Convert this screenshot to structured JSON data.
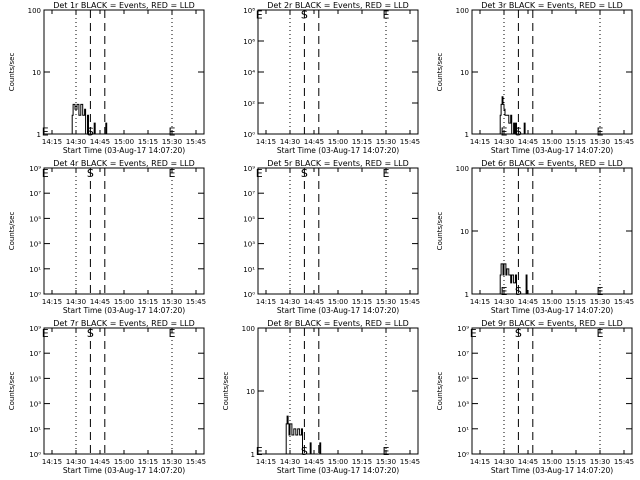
{
  "page": {
    "title_suffix": "BLACK = Events, RED = LLD",
    "x_axis_title": "Start Time (03-Aug-17 14:07:20)",
    "y_axis_title": "Counts/sec"
  },
  "chart_data": [
    {
      "type": "line",
      "title": "Det 1r BLACK = Events, RED = LLD",
      "xlabel": "Start Time (03-Aug-17 14:07:20)",
      "ylabel": "Counts/sec",
      "xlim_min": [
        14.1667,
        15.8333
      ],
      "xtick_labels": [
        "14:15",
        "14:30",
        "14:45",
        "15:00",
        "15:15",
        "15:30",
        "15:45"
      ],
      "ylim": [
        1,
        100
      ],
      "yscale": "log",
      "ytick_labels": [
        "1",
        "10",
        "100"
      ],
      "dotted_lines_min": [
        14.5,
        15.5
      ],
      "dashed_lines_min": [
        14.65,
        14.8
      ],
      "marker_labels": [
        {
          "text": "E",
          "x": 14.18,
          "y_frac": 0.03
        },
        {
          "text": "S",
          "x": 14.65,
          "y_frac": 0.03
        },
        {
          "text": "E",
          "x": 15.5,
          "y_frac": 0.03
        }
      ],
      "series": [
        {
          "color": "#000000",
          "points": [
            [
              14.45,
              1.0
            ],
            [
              14.46,
              2.0
            ],
            [
              14.47,
              3.0
            ],
            [
              14.49,
              2.5
            ],
            [
              14.51,
              3.0
            ],
            [
              14.53,
              2.0
            ],
            [
              14.55,
              3.0
            ],
            [
              14.57,
              2.0
            ],
            [
              14.59,
              2.5
            ],
            [
              14.6,
              1.0
            ],
            [
              14.62,
              2.0
            ],
            [
              14.63,
              1.0
            ],
            [
              14.68,
              1.0
            ],
            [
              14.69,
              1.5
            ],
            [
              14.7,
              1.0
            ],
            [
              14.8,
              1.0
            ],
            [
              14.81,
              1.5
            ],
            [
              14.82,
              1.0
            ]
          ]
        }
      ]
    },
    {
      "type": "line",
      "title": "Det 2r BLACK = Events, RED = LLD",
      "xlabel": "Start Time (03-Aug-17 14:07:20)",
      "ylabel": "",
      "xlim_min": [
        14.1667,
        15.8333
      ],
      "xtick_labels": [
        "14:15",
        "14:30",
        "14:45",
        "15:00",
        "15:15",
        "15:30",
        "15:45"
      ],
      "ylim": [
        1,
        100000000
      ],
      "yscale": "log",
      "ytick_labels": [
        "10⁰",
        "10²",
        "10⁴",
        "10⁶",
        "10⁸"
      ],
      "dotted_lines_min": [
        14.5,
        15.5
      ],
      "dashed_lines_min": [
        14.65,
        14.8
      ],
      "marker_labels": [
        {
          "text": "E",
          "x": 14.18,
          "y_frac": 0.97
        },
        {
          "text": "S",
          "x": 14.65,
          "y_frac": 0.97
        },
        {
          "text": "E",
          "x": 15.5,
          "y_frac": 0.97
        }
      ],
      "series": []
    },
    {
      "type": "line",
      "title": "Det 3r BLACK = Events, RED = LLD",
      "xlabel": "Start Time (03-Aug-17 14:07:20)",
      "ylabel": "Counts/sec",
      "xlim_min": [
        14.1667,
        15.8333
      ],
      "xtick_labels": [
        "14:15",
        "14:30",
        "14:45",
        "15:00",
        "15:15",
        "15:30",
        "15:45"
      ],
      "ylim": [
        1,
        100
      ],
      "yscale": "log",
      "ytick_labels": [
        "1",
        "10",
        "100"
      ],
      "dotted_lines_min": [
        14.5,
        15.5
      ],
      "dashed_lines_min": [
        14.65,
        14.8
      ],
      "marker_labels": [
        {
          "text": "E",
          "x": 14.5,
          "y_frac": 0.03
        },
        {
          "text": "S",
          "x": 14.65,
          "y_frac": 0.03
        },
        {
          "text": "E",
          "x": 15.5,
          "y_frac": 0.03
        }
      ],
      "series": [
        {
          "color": "#000000",
          "points": [
            [
              14.45,
              1.0
            ],
            [
              14.46,
              2.0
            ],
            [
              14.47,
              3.0
            ],
            [
              14.48,
              4.0
            ],
            [
              14.49,
              3.0
            ],
            [
              14.5,
              2.5
            ],
            [
              14.51,
              2.0
            ],
            [
              14.53,
              2.0
            ],
            [
              14.55,
              1.5
            ],
            [
              14.57,
              2.0
            ],
            [
              14.58,
              1.0
            ],
            [
              14.6,
              1.5
            ],
            [
              14.61,
              1.0
            ],
            [
              14.62,
              1.5
            ],
            [
              14.63,
              1.0
            ],
            [
              14.7,
              1.0
            ],
            [
              14.71,
              1.5
            ],
            [
              14.72,
              1.0
            ]
          ]
        }
      ]
    },
    {
      "type": "line",
      "title": "Det 4r BLACK = Events, RED = LLD",
      "xlabel": "Start Time (03-Aug-17 14:07:20)",
      "ylabel": "Counts/sec",
      "xlim_min": [
        14.1667,
        15.8333
      ],
      "xtick_labels": [
        "14:15",
        "14:30",
        "14:45",
        "15:00",
        "15:15",
        "15:30",
        "15:45"
      ],
      "ylim": [
        1,
        1000000000
      ],
      "yscale": "log",
      "ytick_labels": [
        "10⁰",
        "10¹",
        "10³",
        "10⁵",
        "10⁷",
        "10⁹"
      ],
      "dotted_lines_min": [
        14.5,
        15.5
      ],
      "dashed_lines_min": [
        14.65,
        14.8
      ],
      "marker_labels": [
        {
          "text": "E",
          "x": 14.18,
          "y_frac": 0.97
        },
        {
          "text": "S",
          "x": 14.65,
          "y_frac": 0.97
        },
        {
          "text": "E",
          "x": 15.5,
          "y_frac": 0.97
        }
      ],
      "series": []
    },
    {
      "type": "line",
      "title": "Det 5r BLACK = Events, RED = LLD",
      "xlabel": "Start Time (03-Aug-17 14:07:20)",
      "ylabel": "",
      "xlim_min": [
        14.1667,
        15.8333
      ],
      "xtick_labels": [
        "14:15",
        "14:30",
        "14:45",
        "15:00",
        "15:15",
        "15:30",
        "15:45"
      ],
      "ylim": [
        1,
        1000000000
      ],
      "yscale": "log",
      "ytick_labels": [
        "10⁰",
        "10¹",
        "10³",
        "10⁵",
        "10⁷",
        "10⁹"
      ],
      "dotted_lines_min": [
        14.5,
        15.5
      ],
      "dashed_lines_min": [
        14.65,
        14.8
      ],
      "marker_labels": [
        {
          "text": "E",
          "x": 14.18,
          "y_frac": 0.97
        },
        {
          "text": "S",
          "x": 14.65,
          "y_frac": 0.97
        },
        {
          "text": "E",
          "x": 15.5,
          "y_frac": 0.97
        }
      ],
      "series": []
    },
    {
      "type": "line",
      "title": "Det 6r BLACK = Events, RED = LLD",
      "xlabel": "Start Time (03-Aug-17 14:07:20)",
      "ylabel": "Counts/sec",
      "xlim_min": [
        14.1667,
        15.8333
      ],
      "xtick_labels": [
        "14:15",
        "14:30",
        "14:45",
        "15:00",
        "15:15",
        "15:30",
        "15:45"
      ],
      "ylim": [
        1,
        100
      ],
      "yscale": "log",
      "ytick_labels": [
        "1",
        "10",
        "100"
      ],
      "dotted_lines_min": [
        14.5,
        15.5
      ],
      "dashed_lines_min": [
        14.65,
        14.8
      ],
      "marker_labels": [
        {
          "text": "E",
          "x": 14.5,
          "y_frac": 0.03
        },
        {
          "text": "S",
          "x": 14.65,
          "y_frac": 0.03
        },
        {
          "text": "E",
          "x": 15.5,
          "y_frac": 0.03
        }
      ],
      "series": [
        {
          "color": "#000000",
          "points": [
            [
              14.45,
              1.0
            ],
            [
              14.46,
              2.0
            ],
            [
              14.47,
              3.0
            ],
            [
              14.49,
              2.0
            ],
            [
              14.5,
              3.0
            ],
            [
              14.52,
              2.0
            ],
            [
              14.53,
              2.5
            ],
            [
              14.55,
              2.0
            ],
            [
              14.57,
              1.5
            ],
            [
              14.58,
              2.0
            ],
            [
              14.6,
              1.5
            ],
            [
              14.62,
              2.0
            ],
            [
              14.63,
              1.0
            ],
            [
              14.72,
              1.0
            ],
            [
              14.73,
              2.0
            ],
            [
              14.74,
              1.0
            ]
          ]
        }
      ]
    },
    {
      "type": "line",
      "title": "Det 7r BLACK = Events, RED = LLD",
      "xlabel": "Start Time (03-Aug-17 14:07:20)",
      "ylabel": "Counts/sec",
      "xlim_min": [
        14.1667,
        15.8333
      ],
      "xtick_labels": [
        "14:15",
        "14:30",
        "14:45",
        "15:00",
        "15:15",
        "15:30",
        "15:45"
      ],
      "ylim": [
        1,
        1000000000
      ],
      "yscale": "log",
      "ytick_labels": [
        "10⁰",
        "10¹",
        "10³",
        "10⁵",
        "10⁷",
        "10⁹"
      ],
      "dotted_lines_min": [
        14.5,
        15.5
      ],
      "dashed_lines_min": [
        14.65,
        14.8
      ],
      "marker_labels": [
        {
          "text": "E",
          "x": 14.18,
          "y_frac": 0.97
        },
        {
          "text": "S",
          "x": 14.65,
          "y_frac": 0.97
        },
        {
          "text": "E",
          "x": 15.5,
          "y_frac": 0.97
        }
      ],
      "series": []
    },
    {
      "type": "line",
      "title": "Det 8r BLACK = Events, RED = LLD",
      "xlabel": "Start Time (03-Aug-17 14:07:20)",
      "ylabel": "Counts/sec",
      "xlim_min": [
        14.1667,
        15.8333
      ],
      "xtick_labels": [
        "14:15",
        "14:30",
        "14:45",
        "15:00",
        "15:15",
        "15:30",
        "15:45"
      ],
      "ylim": [
        1,
        100
      ],
      "yscale": "log",
      "ytick_labels": [
        "1",
        "10",
        "100"
      ],
      "dotted_lines_min": [
        14.5,
        15.5
      ],
      "dashed_lines_min": [
        14.65,
        14.8
      ],
      "marker_labels": [
        {
          "text": "E",
          "x": 14.18,
          "y_frac": 0.03
        },
        {
          "text": "S",
          "x": 14.65,
          "y_frac": 0.03
        },
        {
          "text": "E",
          "x": 15.5,
          "y_frac": 0.03
        }
      ],
      "series": [
        {
          "color": "#000000",
          "points": [
            [
              14.45,
              1.0
            ],
            [
              14.46,
              3.0
            ],
            [
              14.47,
              4.0
            ],
            [
              14.48,
              3.0
            ],
            [
              14.49,
              2.0
            ],
            [
              14.5,
              3.0
            ],
            [
              14.52,
              2.0
            ],
            [
              14.54,
              2.5
            ],
            [
              14.56,
              2.0
            ],
            [
              14.58,
              2.5
            ],
            [
              14.6,
              2.0
            ],
            [
              14.62,
              2.5
            ],
            [
              14.63,
              1.0
            ],
            [
              14.7,
              1.0
            ],
            [
              14.71,
              1.5
            ],
            [
              14.72,
              1.0
            ],
            [
              14.8,
              1.0
            ],
            [
              14.81,
              1.5
            ],
            [
              14.82,
              1.0
            ]
          ]
        }
      ]
    },
    {
      "type": "line",
      "title": "Det 9r BLACK = Events, RED = LLD",
      "xlabel": "Start Time (03-Aug-17 14:07:20)",
      "ylabel": "Counts/sec",
      "xlim_min": [
        14.1667,
        15.8333
      ],
      "xtick_labels": [
        "14:15",
        "14:30",
        "14:45",
        "15:00",
        "15:15",
        "15:30",
        "15:45"
      ],
      "ylim": [
        1,
        1000000000
      ],
      "yscale": "log",
      "ytick_labels": [
        "10⁰",
        "10¹",
        "10³",
        "10⁵",
        "10⁷",
        "10⁹"
      ],
      "dotted_lines_min": [
        14.5,
        15.5
      ],
      "dashed_lines_min": [
        14.65,
        14.8
      ],
      "marker_labels": [
        {
          "text": "E",
          "x": 14.18,
          "y_frac": 0.97
        },
        {
          "text": "S",
          "x": 14.65,
          "y_frac": 0.97
        },
        {
          "text": "E",
          "x": 15.5,
          "y_frac": 0.97
        }
      ],
      "series": []
    }
  ]
}
